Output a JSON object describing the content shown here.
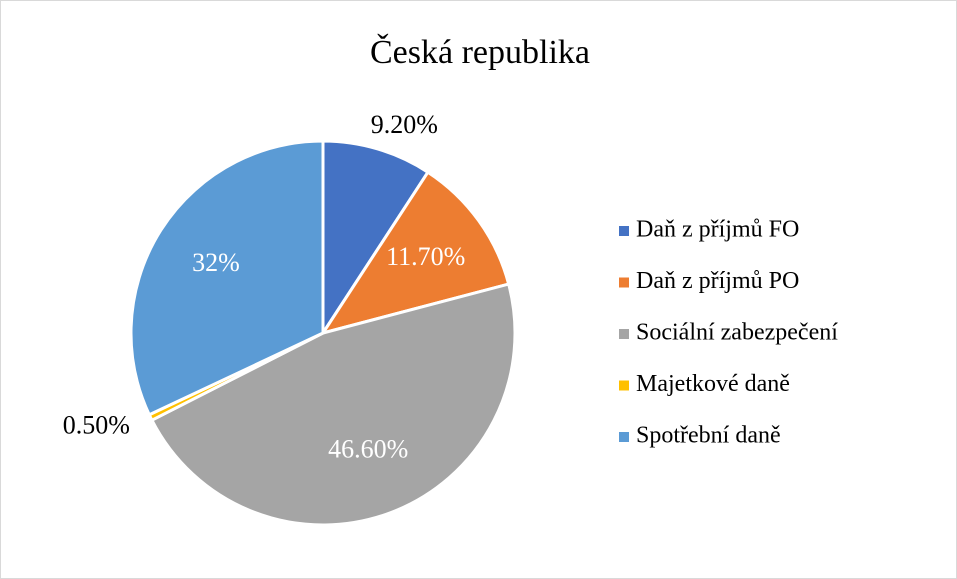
{
  "chart_data": {
    "type": "pie",
    "title": "Česká republika",
    "categories": [
      "Daň z příjmů FO",
      "Daň z příjmů PO",
      "Sociální zabezpečení",
      "Majetkové daně",
      "Spotřební daně"
    ],
    "values": [
      9.2,
      11.7,
      46.6,
      0.5,
      32
    ],
    "value_labels": [
      "9.20%",
      "11.70%",
      "46.60%",
      "0.50%",
      "32%"
    ],
    "colors": [
      "#4472c4",
      "#ed7d31",
      "#a5a5a5",
      "#ffc000",
      "#5b9bd5"
    ],
    "legend": "right"
  }
}
